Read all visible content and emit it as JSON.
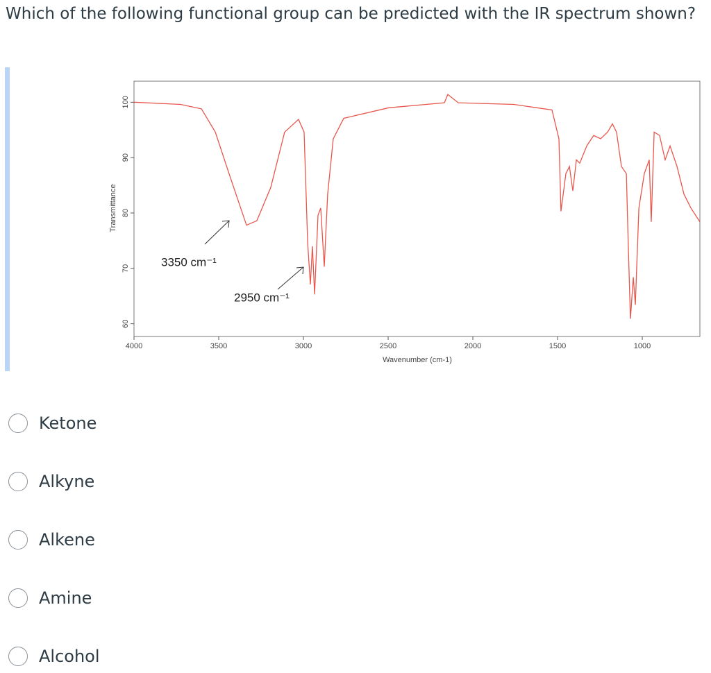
{
  "question": "Which of the following functional group can be predicted with the IR spectrum shown?",
  "chart_data": {
    "type": "line",
    "x_label": "Wavenumber (cm-1)",
    "y_label": "Transmittance",
    "annotations": [
      "3350 cm⁻¹",
      "2950 cm⁻¹"
    ],
    "xlim": [
      4000,
      660
    ],
    "ylim": [
      57.7,
      103.8
    ],
    "xticks": [
      4000,
      3500,
      3000,
      2500,
      2000,
      1500,
      1000
    ],
    "yticks": [
      60,
      70,
      80,
      90,
      100
    ],
    "x": [
      4000,
      3725,
      3602,
      3520,
      3439,
      3336,
      3275,
      3193,
      3111,
      3029,
      2996,
      2975,
      2959,
      2947,
      2934,
      2914,
      2898,
      2877,
      2857,
      2824,
      2762,
      2496,
      2168,
      2148,
      2086,
      1758,
      1533,
      1492,
      1480,
      1451,
      1430,
      1410,
      1389,
      1369,
      1328,
      1287,
      1246,
      1205,
      1176,
      1152,
      1123,
      1094,
      1082,
      1070,
      1053,
      1041,
      1020,
      988,
      959,
      947,
      930,
      898,
      865,
      836,
      795,
      754,
      713,
      660
    ],
    "series": [
      {
        "color": "#e8564c",
        "values": [
          100,
          99.6,
          98.8,
          94.6,
          87.1,
          77.8,
          78.6,
          84.6,
          94.6,
          96.9,
          94.6,
          74.6,
          67.1,
          74,
          65.3,
          79.6,
          80.9,
          70.3,
          83.4,
          93.4,
          97.1,
          99,
          99.9,
          101.4,
          99.9,
          99.6,
          98.6,
          93.4,
          80.3,
          87.1,
          88.4,
          84,
          89.6,
          89,
          92.1,
          94,
          93.4,
          94.6,
          96.1,
          94.6,
          88.4,
          87.1,
          73.4,
          60.9,
          68.4,
          63.4,
          80.9,
          87.1,
          89.6,
          78.4,
          94.6,
          94,
          89.6,
          92.1,
          88.4,
          83.4,
          80.9,
          78.4
        ]
      }
    ]
  },
  "options": [
    "Ketone",
    "Alkyne",
    "Alkene",
    "Amine",
    "Alcohol"
  ]
}
